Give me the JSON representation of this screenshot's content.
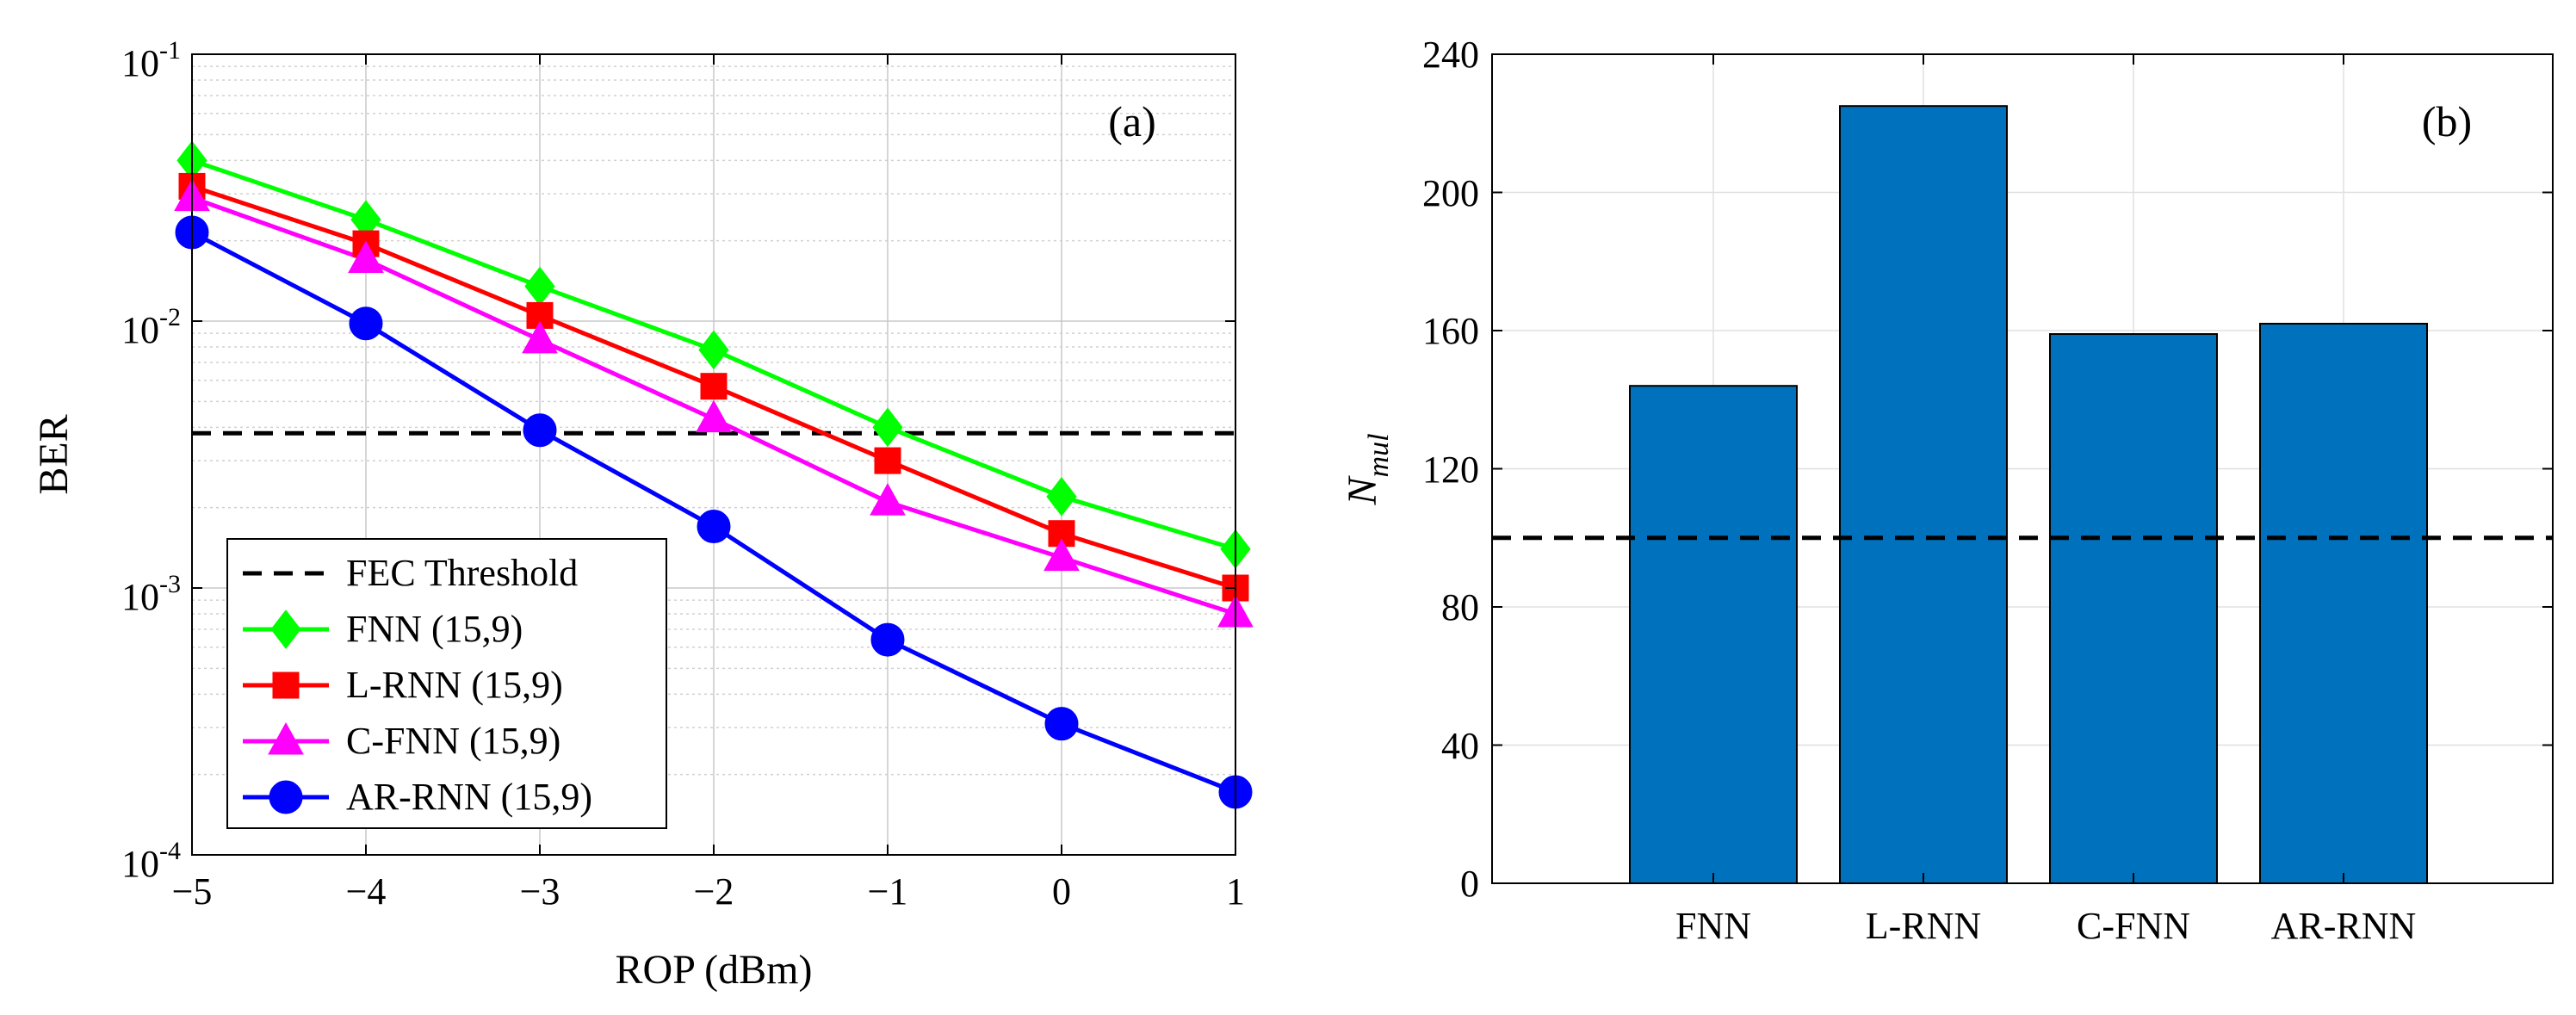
{
  "chart_data": [
    {
      "type": "line",
      "panel_label": "(a)",
      "xlabel": "ROP (dBm)",
      "ylabel": "BER",
      "yscale": "log",
      "x": [
        -5,
        -4,
        -3,
        -2,
        -1,
        0,
        1
      ],
      "x_tick_labels": [
        "−5",
        "−4",
        "−3",
        "−2",
        "−1",
        "0",
        "1"
      ],
      "xlim": [
        -5,
        1
      ],
      "ylim": [
        0.0001,
        0.1
      ],
      "y_ticks": [
        {
          "value": 0.1,
          "base": "10",
          "exp": "-1"
        },
        {
          "value": 0.01,
          "base": "10",
          "exp": "-2"
        },
        {
          "value": 0.001,
          "base": "10",
          "exp": "-3"
        },
        {
          "value": 0.0001,
          "base": "10",
          "exp": "-4"
        }
      ],
      "grid": true,
      "threshold": {
        "name": "FEC Threshold",
        "value": 0.0038,
        "color": "#000000"
      },
      "legend_position": "bottom-left",
      "series": [
        {
          "name": "FNN (15,9)",
          "marker": "diamond",
          "color": "#00ff00",
          "values": [
            0.04,
            0.024,
            0.0135,
            0.0078,
            0.004,
            0.0022,
            0.0014
          ]
        },
        {
          "name": "L-RNN (15,9)",
          "marker": "square",
          "color": "#ff0000",
          "values": [
            0.032,
            0.0195,
            0.0105,
            0.0057,
            0.003,
            0.0016,
            0.001
          ]
        },
        {
          "name": "C-FNN (15,9)",
          "marker": "triangle",
          "color": "#ff00ff",
          "values": [
            0.029,
            0.017,
            0.0085,
            0.0043,
            0.0021,
            0.0013,
            0.0008
          ]
        },
        {
          "name": "AR-RNN (15,9)",
          "marker": "circle",
          "color": "#0000ff",
          "values": [
            0.0215,
            0.0098,
            0.0039,
            0.0017,
            0.00064,
            0.00031,
            0.000172
          ]
        }
      ]
    },
    {
      "type": "bar",
      "panel_label": "(b)",
      "ylabel_main": "N",
      "ylabel_sub": "mul",
      "categories": [
        "FNN",
        "L-RNN",
        "C-FNN",
        "AR-RNN"
      ],
      "values": [
        144,
        225,
        159,
        162
      ],
      "bar_color": "#0072bd",
      "ylim": [
        0,
        240
      ],
      "y_ticks": [
        0,
        40,
        80,
        120,
        160,
        200,
        240
      ],
      "threshold_value": 100,
      "grid": true
    }
  ]
}
